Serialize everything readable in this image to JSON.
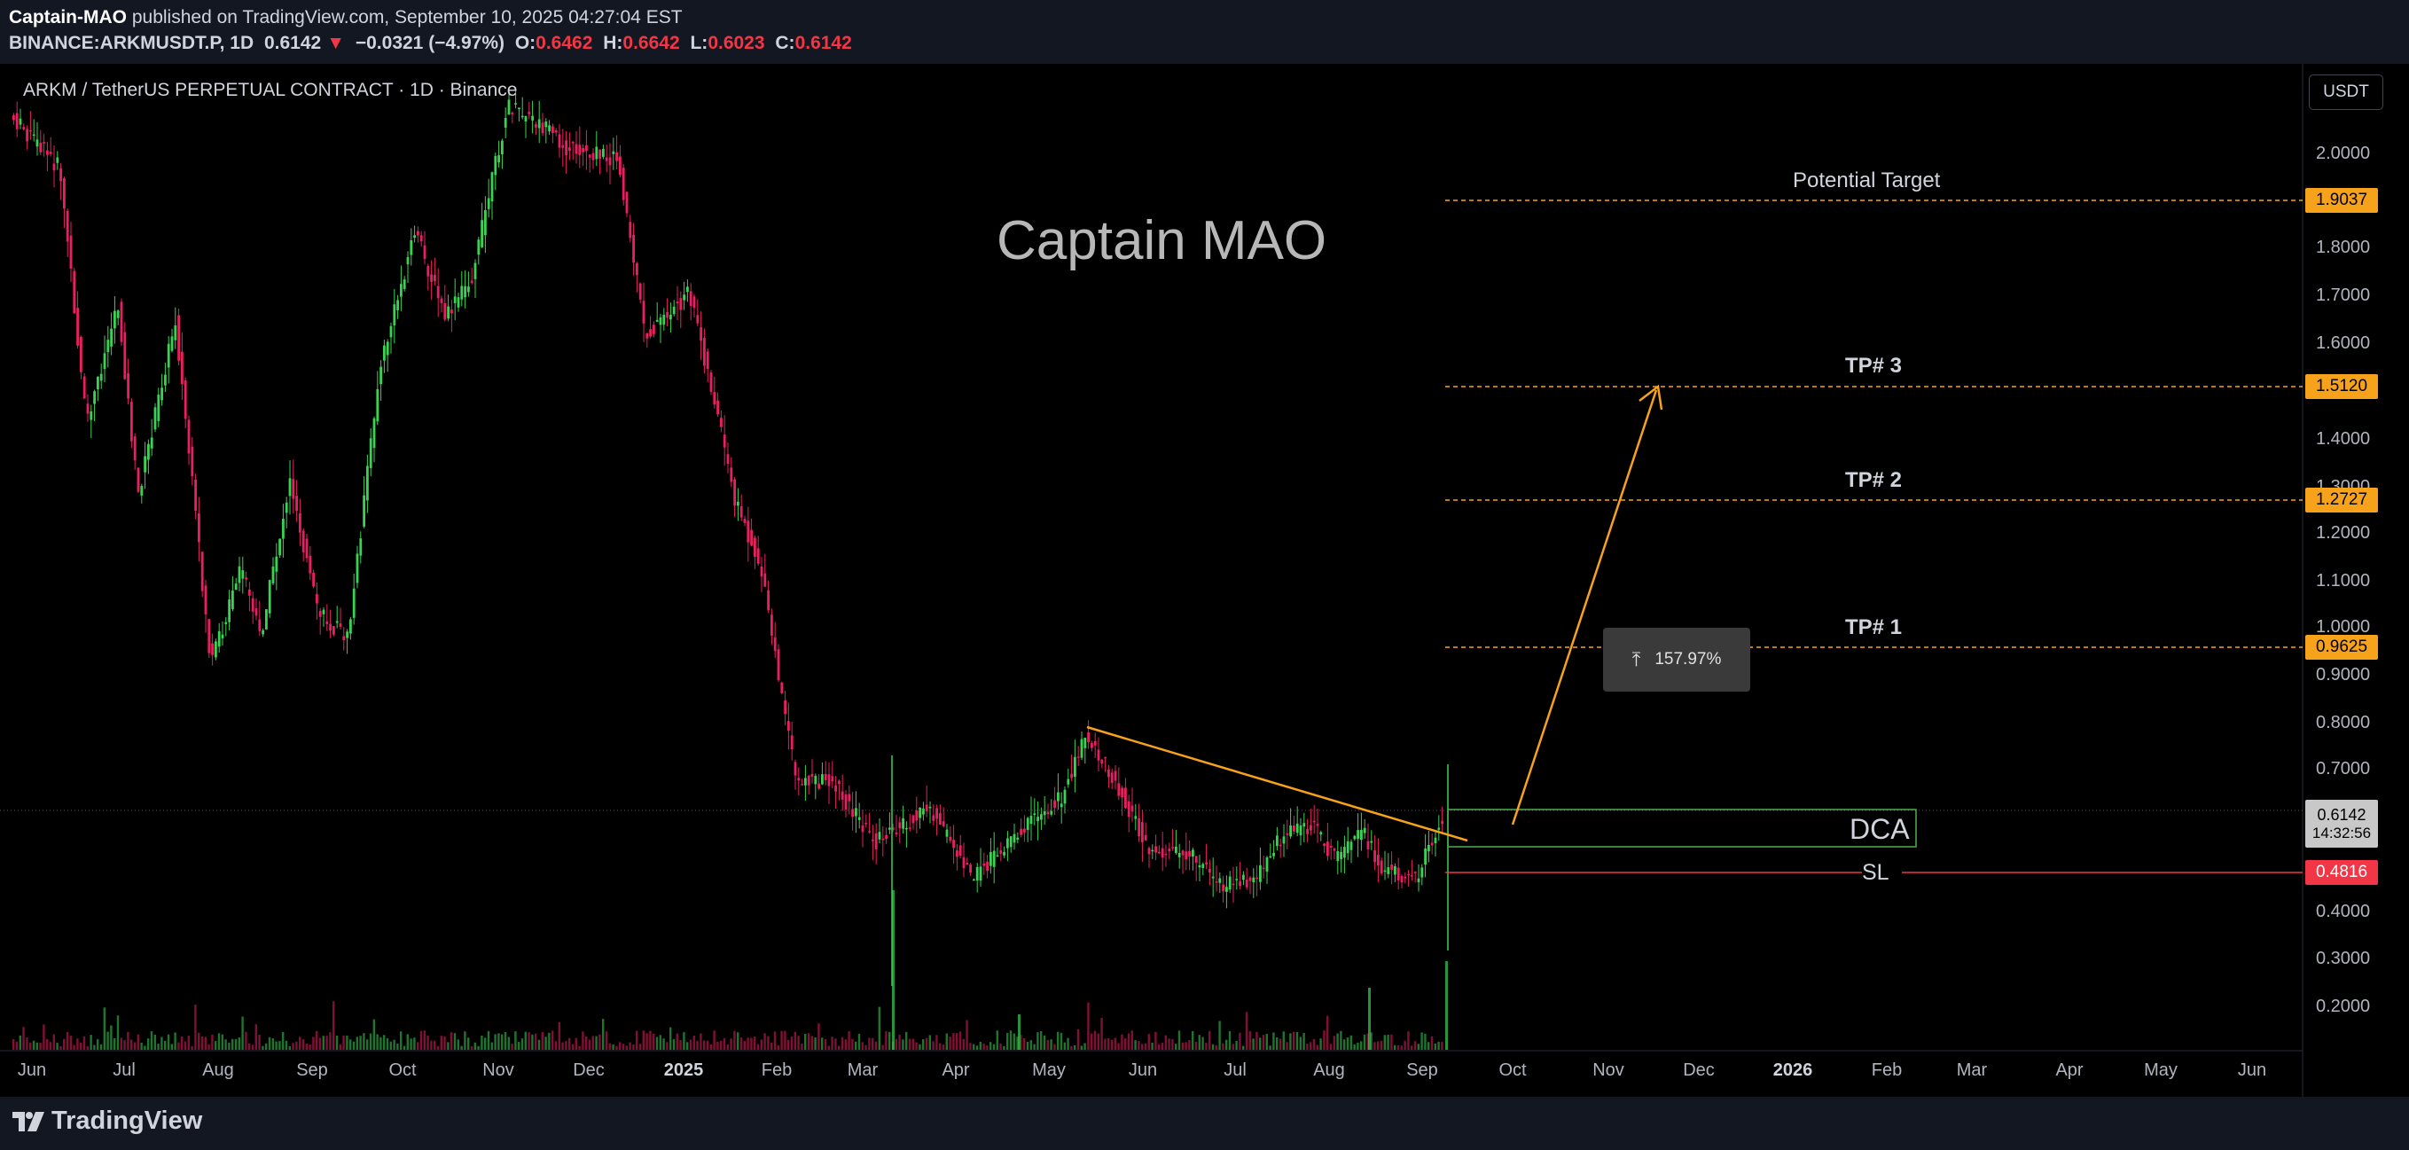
{
  "header": {
    "author": "Captain-MAO",
    "published_text": "published on TradingView.com, September 10, 2025 04:27:04 EST",
    "symbol_line": "BINANCE:ARKMUSDT.P, 1D",
    "last": "0.6142",
    "change": "−0.0321 (−4.97%)",
    "o_label": "O:",
    "o": "0.6462",
    "h_label": "H:",
    "h": "0.6642",
    "l_label": "L:",
    "l": "0.6023",
    "c_label": "C:",
    "c": "0.6142"
  },
  "chart": {
    "symbol_title": "ARKM / TetherUS PERPETUAL CONTRACT · 1D · Binance",
    "currency_button": "USDT",
    "watermark": "Captain MAO",
    "price_ticks": [
      "2.0000",
      "1.8000",
      "1.7000",
      "1.6000",
      "1.5000",
      "1.4000",
      "1.3000",
      "1.2000",
      "1.1000",
      "1.0000",
      "0.9000",
      "0.8000",
      "0.7000",
      "0.4000",
      "0.3000",
      "0.2000"
    ],
    "time_labels": [
      {
        "text": "Jun",
        "bold": false
      },
      {
        "text": "Jul",
        "bold": false
      },
      {
        "text": "Aug",
        "bold": false
      },
      {
        "text": "Sep",
        "bold": false
      },
      {
        "text": "Oct",
        "bold": false
      },
      {
        "text": "Nov",
        "bold": false
      },
      {
        "text": "Dec",
        "bold": false
      },
      {
        "text": "2025",
        "bold": true
      },
      {
        "text": "Feb",
        "bold": false
      },
      {
        "text": "Mar",
        "bold": false
      },
      {
        "text": "Apr",
        "bold": false
      },
      {
        "text": "May",
        "bold": false
      },
      {
        "text": "Jun",
        "bold": false
      },
      {
        "text": "Jul",
        "bold": false
      },
      {
        "text": "Aug",
        "bold": false
      },
      {
        "text": "Sep",
        "bold": false
      },
      {
        "text": "Oct",
        "bold": false
      },
      {
        "text": "Nov",
        "bold": false
      },
      {
        "text": "Dec",
        "bold": false
      },
      {
        "text": "2026",
        "bold": true
      },
      {
        "text": "Feb",
        "bold": false
      },
      {
        "text": "Mar",
        "bold": false
      },
      {
        "text": "Apr",
        "bold": false
      },
      {
        "text": "May",
        "bold": false
      },
      {
        "text": "Jun",
        "bold": false
      }
    ],
    "levels": {
      "potential_target": {
        "label": "Potential Target",
        "price": "1.9037",
        "color": "#f7a21b"
      },
      "tp3": {
        "label": "TP# 3",
        "price": "1.5120",
        "color": "#f7a21b"
      },
      "tp2": {
        "label": "TP# 2",
        "price": "1.2727",
        "color": "#f7a21b"
      },
      "tp1": {
        "label": "TP# 1",
        "price": "0.9625",
        "color": "#f7a21b"
      },
      "dca": {
        "label": "DCA",
        "color": "#4caf50"
      },
      "sl": {
        "label": "SL",
        "price": "0.4816",
        "color": "#f23645"
      }
    },
    "last_price_label": "0.6142",
    "countdown": "14:32:56",
    "measure_percent": "157.97%",
    "colors": {
      "up": "#22ab94",
      "bull": "#39d353",
      "bear": "#e91e63",
      "accent": "#f7a21b"
    }
  },
  "footer": {
    "brand": "TradingView"
  }
}
